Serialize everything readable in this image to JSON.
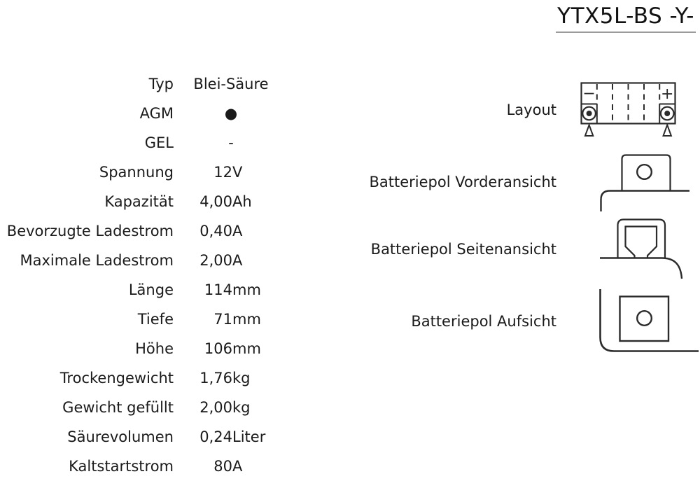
{
  "title": "YTX5L-BS -Y-",
  "spec_table": {
    "rows": [
      {
        "label": "Typ",
        "value": "Blei-Säure",
        "unit": "",
        "center": true
      },
      {
        "label": "AGM",
        "value": "●",
        "unit": "",
        "center": true,
        "style": "bullet"
      },
      {
        "label": "GEL",
        "value": "-",
        "unit": "",
        "center": true
      },
      {
        "label": "Spannung",
        "value": "12",
        "unit": "V"
      },
      {
        "label": "Kapazität",
        "value": "4,00",
        "unit": "Ah"
      },
      {
        "label": "Bevorzugte Ladestrom",
        "value": "0,40",
        "unit": "A"
      },
      {
        "label": "Maximale Ladestrom",
        "value": "2,00",
        "unit": "A"
      },
      {
        "label": "Länge",
        "value": "114",
        "unit": "mm"
      },
      {
        "label": "Tiefe",
        "value": "71",
        "unit": "mm"
      },
      {
        "label": "Höhe",
        "value": "106",
        "unit": "mm"
      },
      {
        "label": "Trockengewicht",
        "value": "1,76",
        "unit": "kg"
      },
      {
        "label": "Gewicht gefüllt",
        "value": "2,00",
        "unit": "kg"
      },
      {
        "label": "Säurevolumen",
        "value": "0,24",
        "unit": "Liter"
      },
      {
        "label": "Kaltstartstrom",
        "value": "80",
        "unit": "A"
      }
    ]
  },
  "diagrams": {
    "layout_label": "Layout",
    "front_label": "Batteriepol Vorderansicht",
    "side_label": "Batteriepol Seitenansicht",
    "top_label": "Batteriepol Aufsicht",
    "minus_symbol": "−",
    "plus_symbol": "+"
  },
  "colors": {
    "line": "#2b2b2b",
    "text": "#1a1a1a",
    "title_underline": "#9b9b9b"
  }
}
